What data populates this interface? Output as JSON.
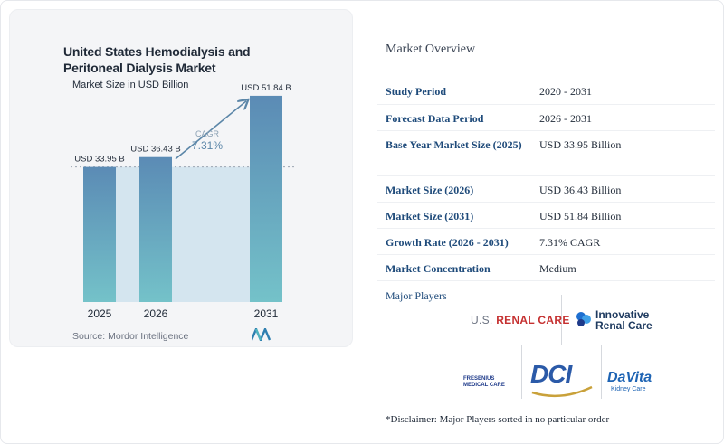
{
  "chart_data": {
    "type": "bar",
    "title": "United States Hemodialysis and Peritoneal Dialysis Market",
    "subtitle": "Market Size in USD Billion",
    "categories": [
      "2025",
      "2026",
      "2031"
    ],
    "values": [
      33.95,
      36.43,
      51.84
    ],
    "value_labels": [
      "USD 33.95 B",
      "USD 36.43 B",
      "USD 51.84 B"
    ],
    "cagr_label": "CAGR",
    "cagr_value": "7.31%",
    "ylim": [
      0,
      55
    ],
    "colors": {
      "bar_top": "#5b8bb5",
      "bar_bottom": "#74c2c9",
      "band": "#d4e5ef"
    }
  },
  "source": "Source: Mordor Intelligence",
  "overview": {
    "title": "Market Overview",
    "rows": [
      {
        "key": "Study Period",
        "value": "2020 - 2031"
      },
      {
        "key": "Forecast Data Period",
        "value": "2026 - 2031"
      },
      {
        "key": "Base Year Market Size (2025)",
        "value": "USD 33.95 Billion"
      },
      {
        "key": "Market Size (2026)",
        "value": "USD 36.43 Billion"
      },
      {
        "key": "Market Size (2031)",
        "value": "USD 51.84 Billion"
      },
      {
        "key": "Growth Rate (2026 - 2031)",
        "value": "7.31% CAGR"
      },
      {
        "key": "Market Concentration",
        "value": "Medium"
      }
    ]
  },
  "players": {
    "title": "Major Players",
    "logos": {
      "us_renal_prefix": "U.S.",
      "us_renal_name": "RENAL CARE",
      "irc_line1": "Innovative",
      "irc_line2": "Renal Care",
      "fresenius_line1": "FRESENIUS",
      "fresenius_line2": "MEDICAL CARE",
      "dci": "DCI",
      "davita": "DaVita",
      "davita_sub": "Kidney Care"
    }
  },
  "disclaimer": "*Disclaimer: Major Players sorted in no particular order"
}
